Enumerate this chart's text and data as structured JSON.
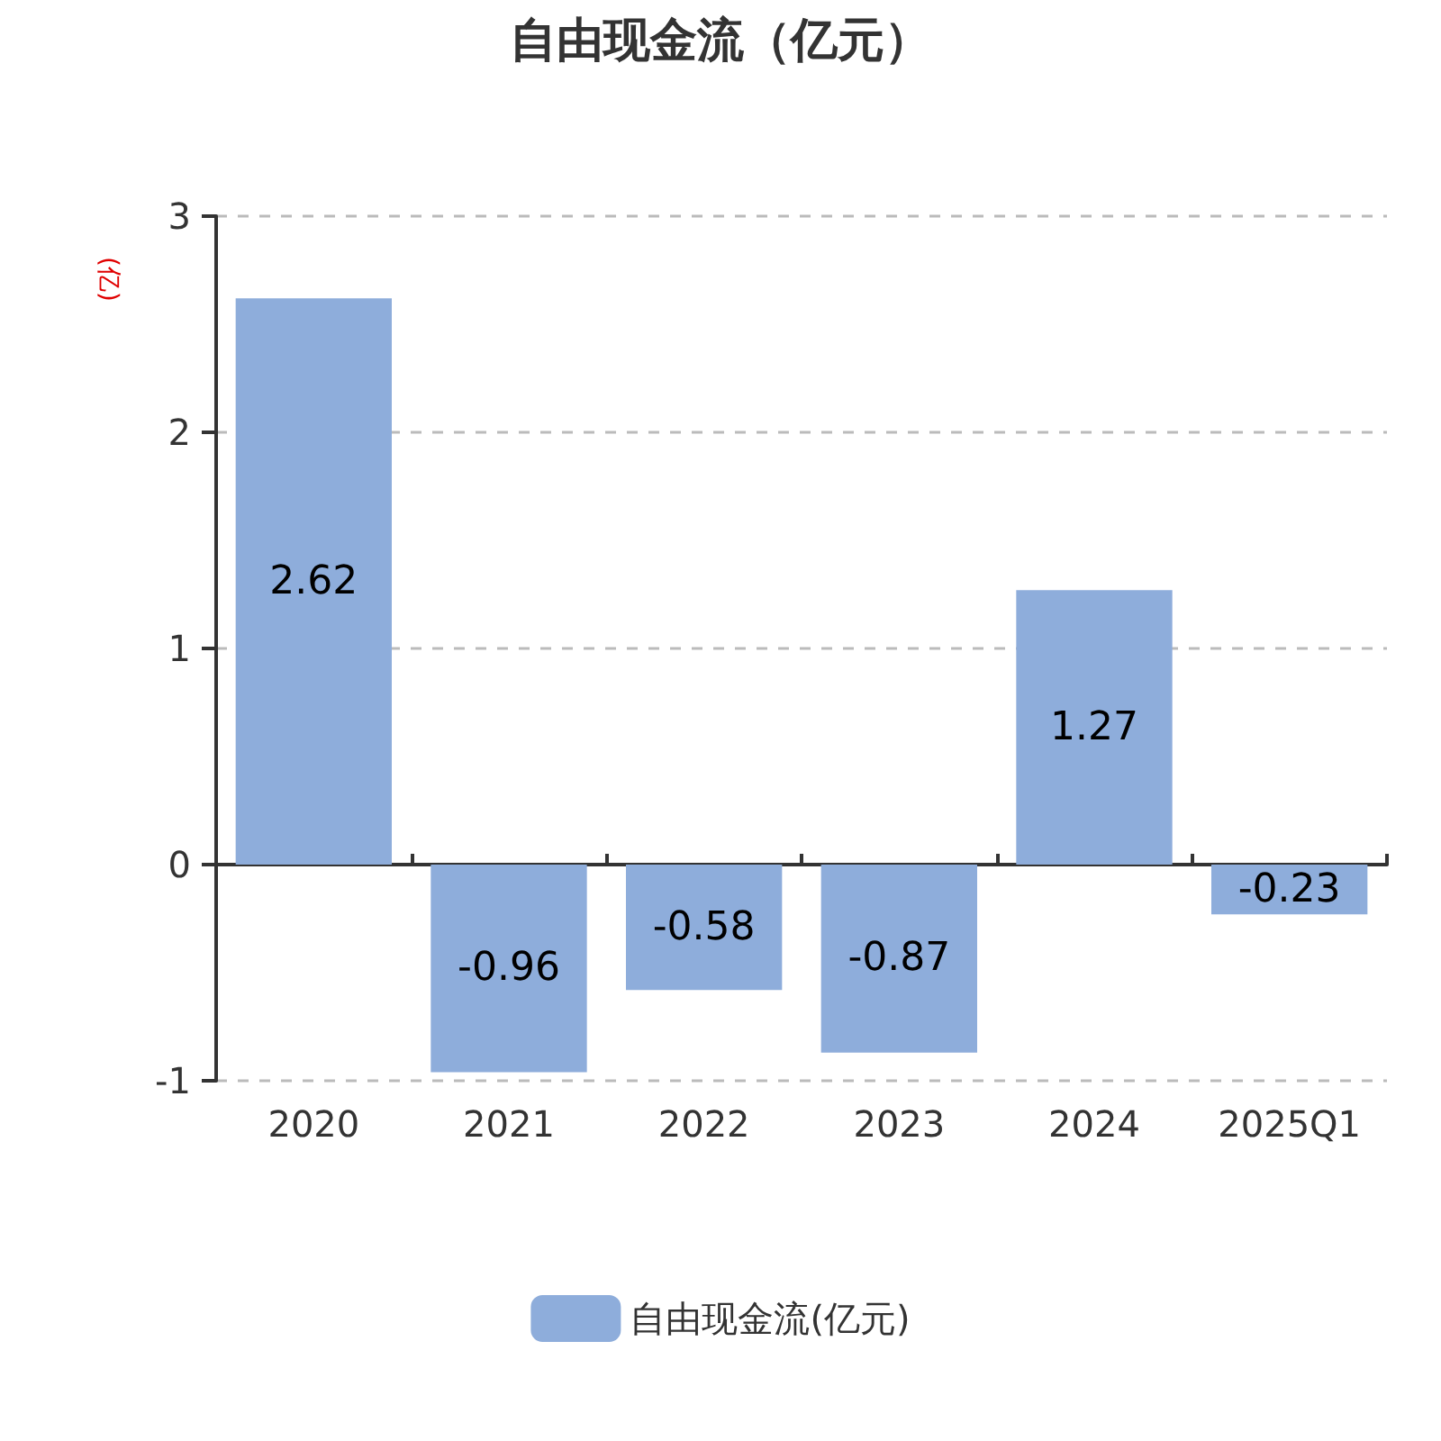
{
  "chart_data": {
    "type": "bar",
    "title": "自由现金流（亿元）",
    "ylabel": "(亿)",
    "categories": [
      "2020",
      "2021",
      "2022",
      "2023",
      "2024",
      "2025Q1"
    ],
    "series": [
      {
        "name": "自由现金流(亿元)",
        "color": "#8eaddb",
        "values": [
          2.62,
          -0.96,
          -0.58,
          -0.87,
          1.27,
          -0.23
        ]
      }
    ],
    "ylim": [
      -1,
      3
    ],
    "yticks": [
      -1,
      0,
      1,
      2,
      3
    ],
    "grid": "y",
    "legend": "bottom",
    "data_labels": true
  }
}
